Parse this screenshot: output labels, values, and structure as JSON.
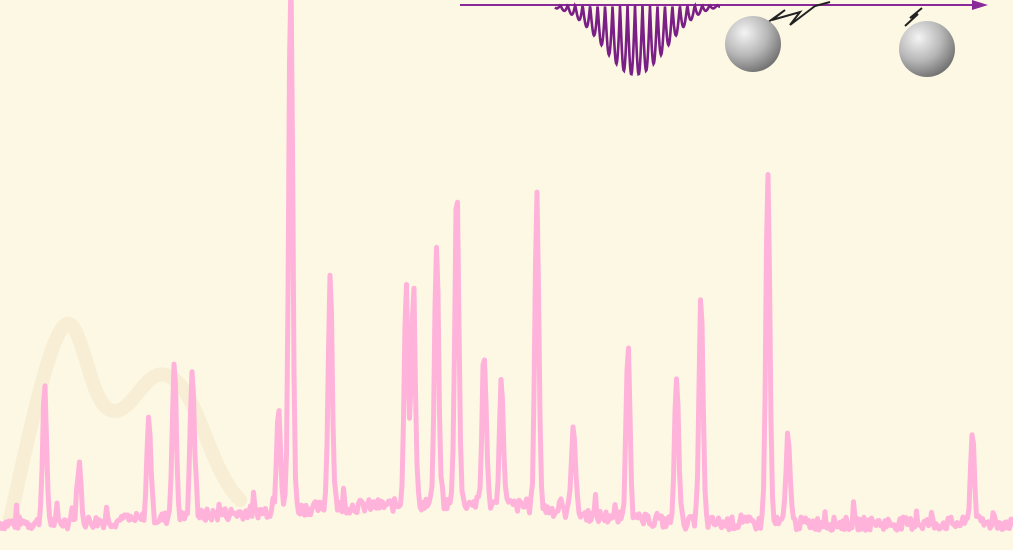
{
  "colors": {
    "background": "#fdf8e4",
    "spectrum": "#ffb3da",
    "pulse": "#7a1f86",
    "axis_arrow": "#8a2a98",
    "watermark": "#f6ecd4",
    "particle_light": "#f4f4f4",
    "particle_dark": "#7a7a7a",
    "spring": "#222222"
  },
  "spectrum": {
    "baseline_level": 0.04,
    "peaks": [
      {
        "position": 0.044,
        "height": 0.25
      },
      {
        "position": 0.078,
        "height": 0.11
      },
      {
        "position": 0.147,
        "height": 0.19
      },
      {
        "position": 0.172,
        "height": 0.29
      },
      {
        "position": 0.19,
        "height": 0.27
      },
      {
        "position": 0.275,
        "height": 0.2
      },
      {
        "position": 0.287,
        "height": 1.0
      },
      {
        "position": 0.326,
        "height": 0.44
      },
      {
        "position": 0.401,
        "height": 0.41
      },
      {
        "position": 0.408,
        "height": 0.39
      },
      {
        "position": 0.431,
        "height": 0.49
      },
      {
        "position": 0.451,
        "height": 0.6
      },
      {
        "position": 0.478,
        "height": 0.28
      },
      {
        "position": 0.495,
        "height": 0.23
      },
      {
        "position": 0.53,
        "height": 0.58
      },
      {
        "position": 0.566,
        "height": 0.17
      },
      {
        "position": 0.62,
        "height": 0.33
      },
      {
        "position": 0.668,
        "height": 0.28
      },
      {
        "position": 0.692,
        "height": 0.42
      },
      {
        "position": 0.758,
        "height": 0.65
      },
      {
        "position": 0.778,
        "height": 0.17
      },
      {
        "position": 0.96,
        "height": 0.17
      }
    ]
  },
  "illustration": {
    "elements": [
      "laser-pulse",
      "propagation-arrow",
      "spring",
      "particle-1",
      "particle-2"
    ]
  }
}
